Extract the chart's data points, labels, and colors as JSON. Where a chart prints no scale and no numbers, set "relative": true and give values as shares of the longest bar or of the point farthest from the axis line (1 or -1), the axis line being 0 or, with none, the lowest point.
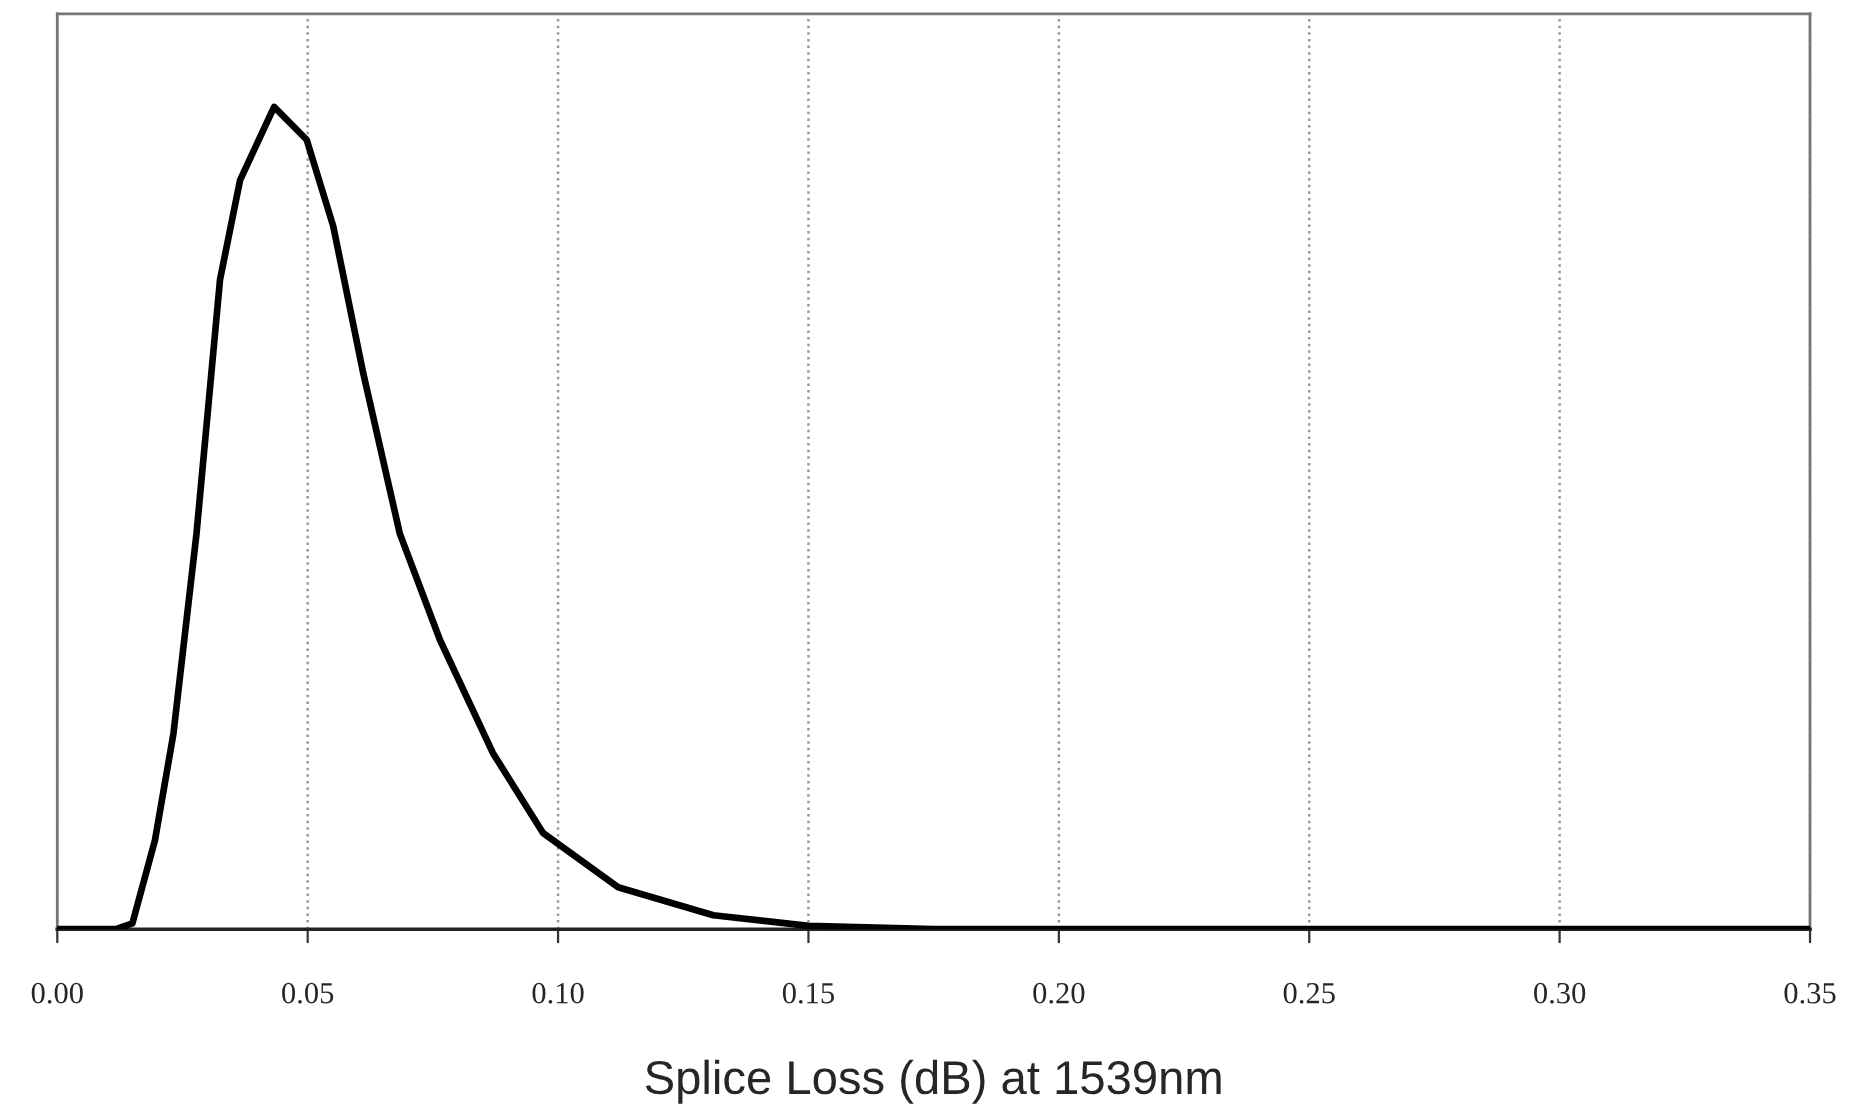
{
  "chart_data": {
    "type": "line",
    "relative": true,
    "xlabel": "Splice Loss (dB) at 1539nm",
    "x": [
      0.0,
      0.01,
      0.0117,
      0.015,
      0.0195,
      0.0232,
      0.0278,
      0.0325,
      0.0365,
      0.0433,
      0.0498,
      0.0551,
      0.0611,
      0.0684,
      0.0764,
      0.087,
      0.097,
      0.112,
      0.131,
      0.15,
      0.175,
      0.35
    ],
    "series": [
      {
        "color": "#000000",
        "values": [
          0,
          0,
          0,
          0.007,
          0.108,
          0.238,
          0.481,
          0.79,
          0.911,
          1.0,
          0.96,
          0.855,
          0.676,
          0.481,
          0.352,
          0.214,
          0.117,
          0.051,
          0.017,
          0.004,
          0,
          0
        ]
      }
    ],
    "xlim": [
      0,
      0.35
    ],
    "xticks": [
      {
        "value": 0,
        "label": "0.00"
      },
      {
        "value": 0.05,
        "label": "0.05"
      },
      {
        "value": 0.1,
        "label": "0.10"
      },
      {
        "value": 0.15,
        "label": "0.15"
      },
      {
        "value": 0.2,
        "label": "0.20"
      },
      {
        "value": 0.25,
        "label": "0.25"
      },
      {
        "value": 0.3,
        "label": "0.30"
      },
      {
        "value": 0.35,
        "label": "0.35"
      }
    ],
    "grid": "x",
    "marker": "none",
    "line_style": "solid"
  }
}
